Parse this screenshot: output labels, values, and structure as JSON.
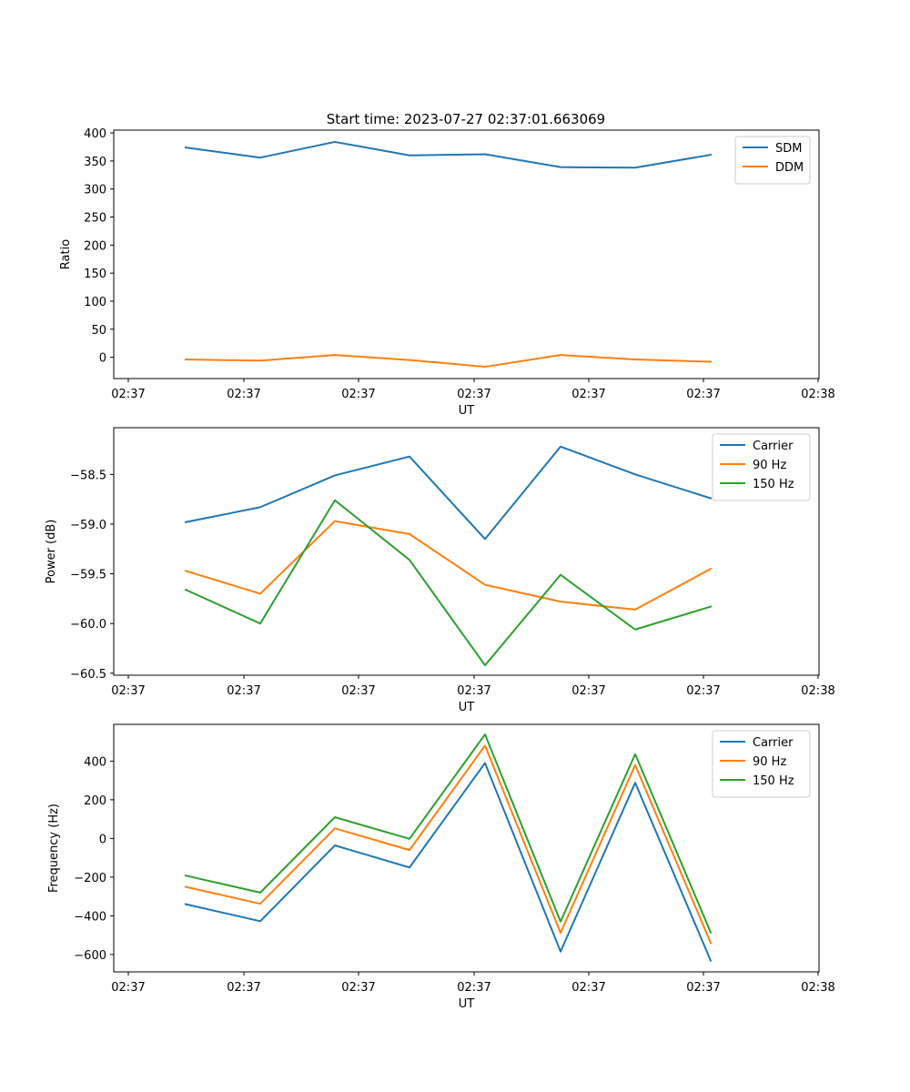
{
  "figure_title": "Start time: 2023-07-27 02:37:01.663069",
  "chart_data": [
    {
      "type": "line",
      "xlabel": "UT",
      "ylabel": "Ratio",
      "x_ticks": [
        "02:37",
        "02:37",
        "02:37",
        "02:37",
        "02:37",
        "02:37",
        "02:37"
      ],
      "x_end_tick": "02:38",
      "ylim": [
        -38,
        405
      ],
      "y_ticks": [
        0,
        50,
        100,
        150,
        200,
        250,
        300,
        350,
        400
      ],
      "y_tick_labels": [
        "0",
        "50",
        "100",
        "150",
        "200",
        "250",
        "300",
        "350",
        "400"
      ],
      "legend_position": "top-right",
      "series": [
        {
          "name": "SDM",
          "color": "#1f77b4",
          "values": [
            374,
            356,
            384,
            360,
            362,
            339,
            338,
            361
          ]
        },
        {
          "name": "DDM",
          "color": "#ff7f0e",
          "values": [
            -4,
            -6,
            4,
            -5,
            -17,
            4,
            -4,
            -8
          ]
        }
      ]
    },
    {
      "type": "line",
      "xlabel": "UT",
      "ylabel": "Power (dB)",
      "x_ticks": [
        "02:37",
        "02:37",
        "02:37",
        "02:37",
        "02:37",
        "02:37",
        "02:37"
      ],
      "x_end_tick": "02:38",
      "ylim": [
        -60.52,
        -58.03
      ],
      "y_ticks": [
        -60.5,
        -60.0,
        -59.5,
        -59.0,
        -58.5
      ],
      "y_tick_labels": [
        "−60.5",
        "−60.0",
        "−59.5",
        "−59.0",
        "−58.5"
      ],
      "legend_position": "top-right",
      "series": [
        {
          "name": "Carrier",
          "color": "#1f77b4",
          "values": [
            -58.98,
            -58.83,
            -58.51,
            -58.32,
            -59.15,
            -58.22,
            -58.5,
            -58.74
          ]
        },
        {
          "name": "90 Hz",
          "color": "#ff7f0e",
          "values": [
            -59.47,
            -59.7,
            -58.97,
            -59.1,
            -59.61,
            -59.78,
            -59.86,
            -59.45
          ]
        },
        {
          "name": "150 Hz",
          "color": "#2ca02c",
          "values": [
            -59.66,
            -60.0,
            -58.76,
            -59.36,
            -60.42,
            -59.51,
            -60.06,
            -59.83
          ]
        }
      ]
    },
    {
      "type": "line",
      "xlabel": "UT",
      "ylabel": "Frequency (Hz)",
      "x_ticks": [
        "02:37",
        "02:37",
        "02:37",
        "02:37",
        "02:37",
        "02:37",
        "02:37"
      ],
      "x_end_tick": "02:38",
      "ylim": [
        -690,
        590
      ],
      "y_ticks": [
        -600,
        -400,
        -200,
        0,
        200,
        400
      ],
      "y_tick_labels": [
        "−600",
        "−400",
        "−200",
        "0",
        "200",
        "400"
      ],
      "legend_position": "top-right",
      "series": [
        {
          "name": "Carrier",
          "color": "#1f77b4",
          "values": [
            -340,
            -428,
            -36,
            -150,
            390,
            -585,
            288,
            -632
          ]
        },
        {
          "name": "90 Hz",
          "color": "#ff7f0e",
          "values": [
            -250,
            -338,
            52,
            -60,
            480,
            -488,
            380,
            -540
          ]
        },
        {
          "name": "150 Hz",
          "color": "#2ca02c",
          "values": [
            -192,
            -280,
            110,
            -2,
            538,
            -430,
            436,
            -486
          ]
        }
      ]
    }
  ]
}
